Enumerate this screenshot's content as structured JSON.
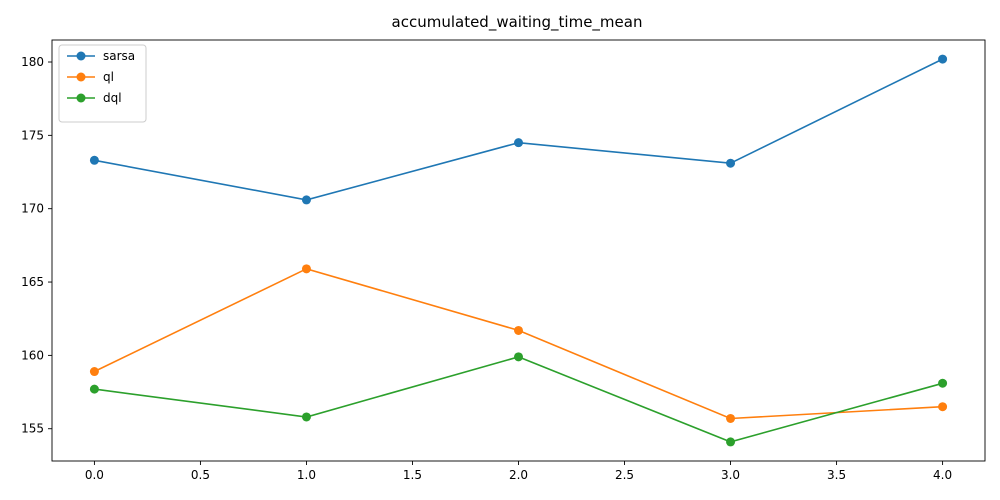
{
  "chart_data": {
    "type": "line",
    "title": "accumulated_waiting_time_mean",
    "xlabel": "",
    "ylabel": "",
    "x": [
      0,
      1,
      2,
      3,
      4
    ],
    "xlim": [
      -0.2,
      4.2
    ],
    "ylim": [
      152.8,
      181.5
    ],
    "xticks": [
      0.0,
      0.5,
      1.0,
      1.5,
      2.0,
      2.5,
      3.0,
      3.5,
      4.0
    ],
    "xtick_labels": [
      "0.0",
      "0.5",
      "1.0",
      "1.5",
      "2.0",
      "2.5",
      "3.0",
      "3.5",
      "4.0"
    ],
    "yticks": [
      155,
      160,
      165,
      170,
      175,
      180
    ],
    "ytick_labels": [
      "155",
      "160",
      "165",
      "170",
      "175",
      "180"
    ],
    "grid": false,
    "legend_position": "top-left",
    "series": [
      {
        "name": "sarsa",
        "color": "#1f77b4",
        "values": [
          173.3,
          170.6,
          174.5,
          173.1,
          180.2
        ]
      },
      {
        "name": "ql",
        "color": "#ff7f0e",
        "values": [
          158.9,
          165.9,
          161.7,
          155.7,
          156.5
        ]
      },
      {
        "name": "dql",
        "color": "#2ca02c",
        "values": [
          157.7,
          155.8,
          159.9,
          154.1,
          158.1
        ]
      }
    ]
  }
}
